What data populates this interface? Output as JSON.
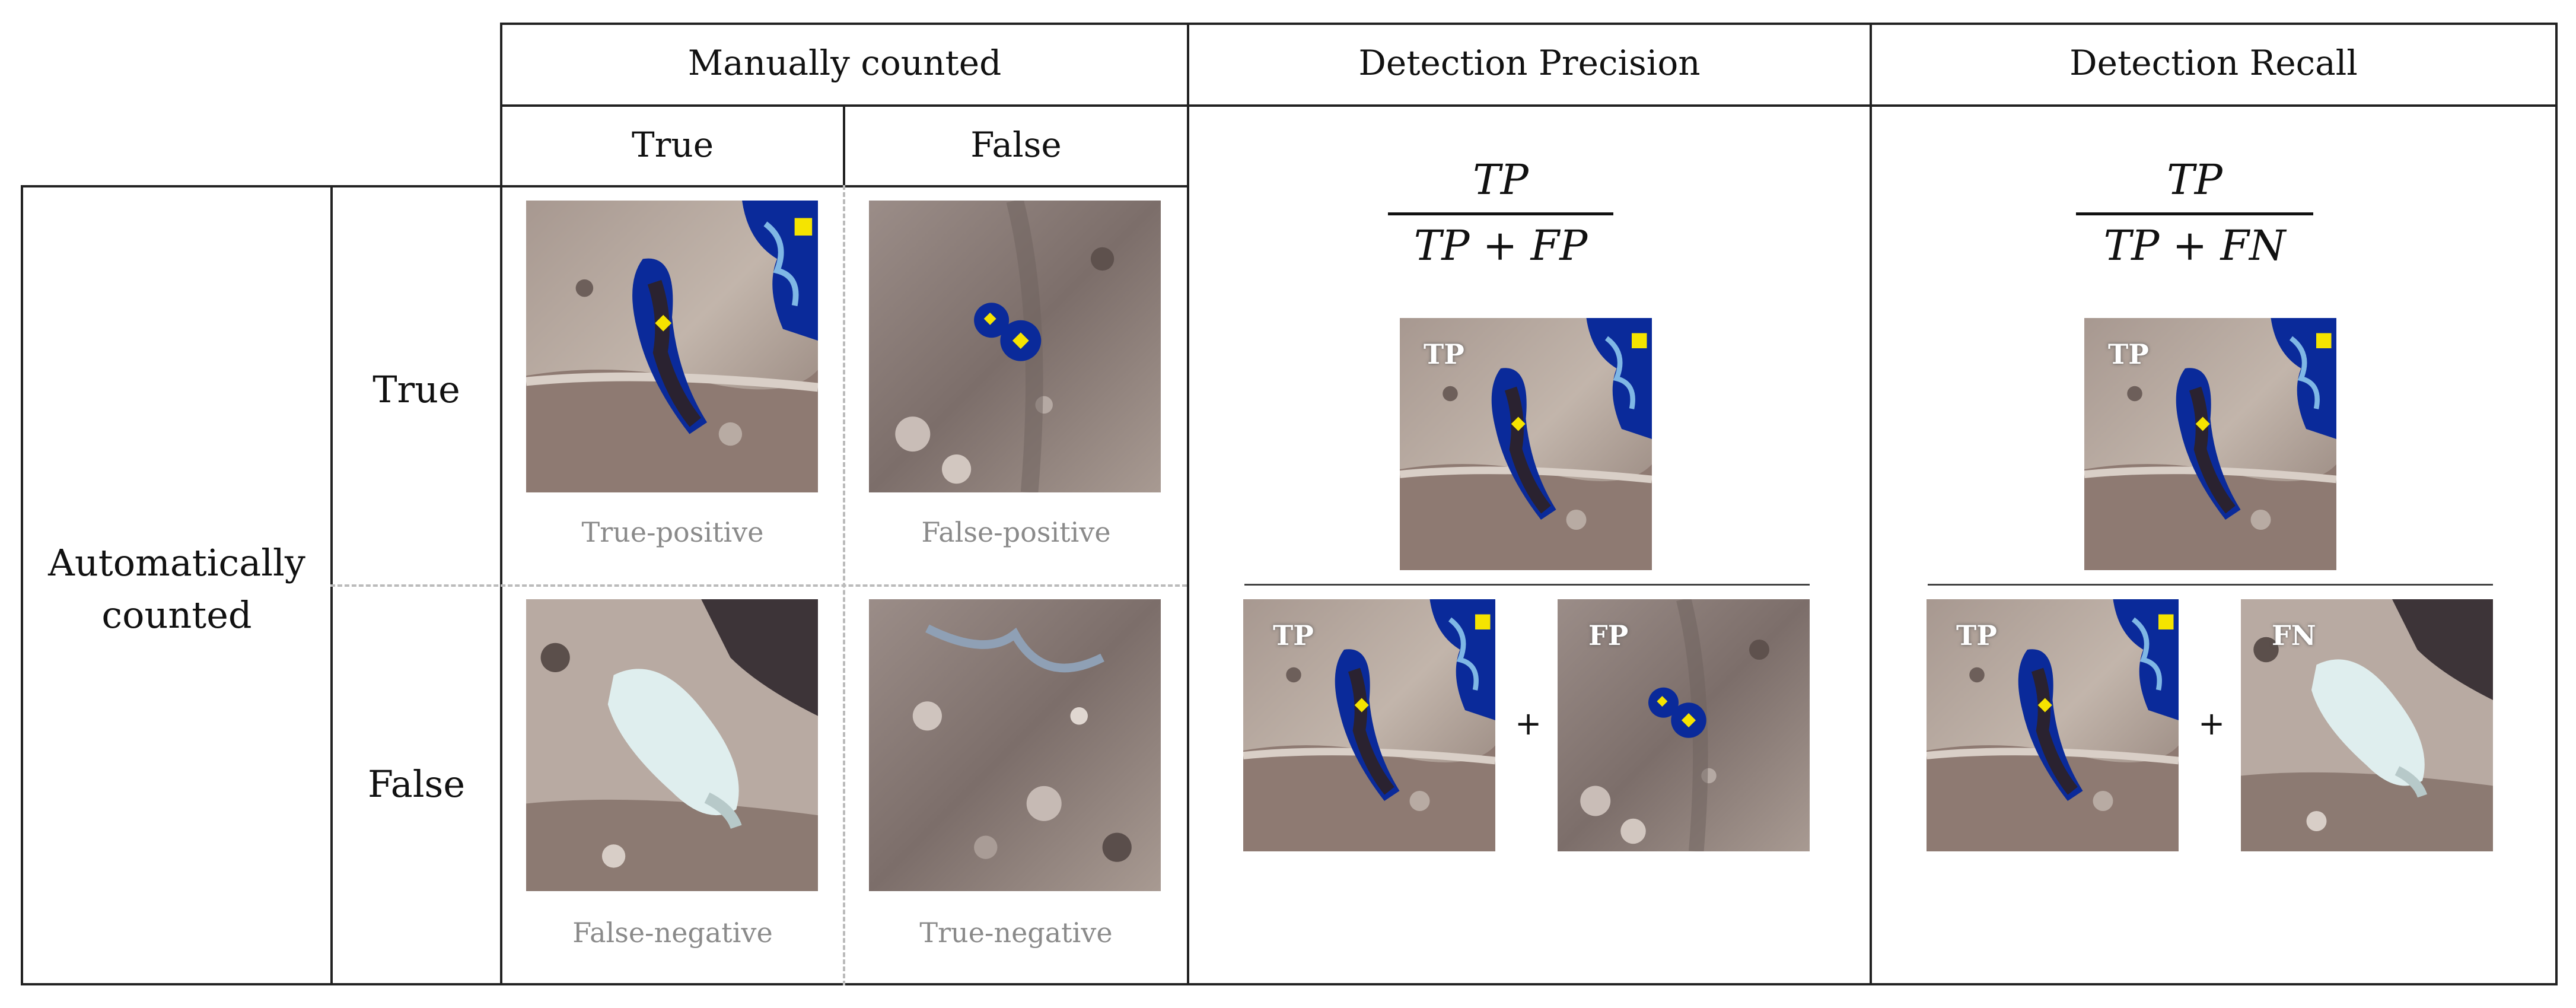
{
  "headers": {
    "manually_counted": "Manually counted",
    "detection_precision": "Detection Precision",
    "detection_recall": "Detection Recall",
    "col_true": "True",
    "col_false": "False"
  },
  "rows": {
    "automatically_counted": "Automatically counted",
    "row_true": "True",
    "row_false": "False"
  },
  "captions": {
    "true_positive": "True-positive",
    "false_positive": "False-positive",
    "false_negative": "False-negative",
    "true_negative": "True-negative"
  },
  "precision_formula": {
    "numerator": "TP",
    "denominator": "TP + FP"
  },
  "recall_formula": {
    "numerator": "TP",
    "denominator": "TP + FN"
  },
  "tags": {
    "tp": "TP",
    "fp": "FP",
    "fn": "FN"
  },
  "plus": "+",
  "colors": {
    "mask_blue": "#0a2a9a",
    "marker_yellow": "#f5e400",
    "ground": "#b9aaa0"
  }
}
